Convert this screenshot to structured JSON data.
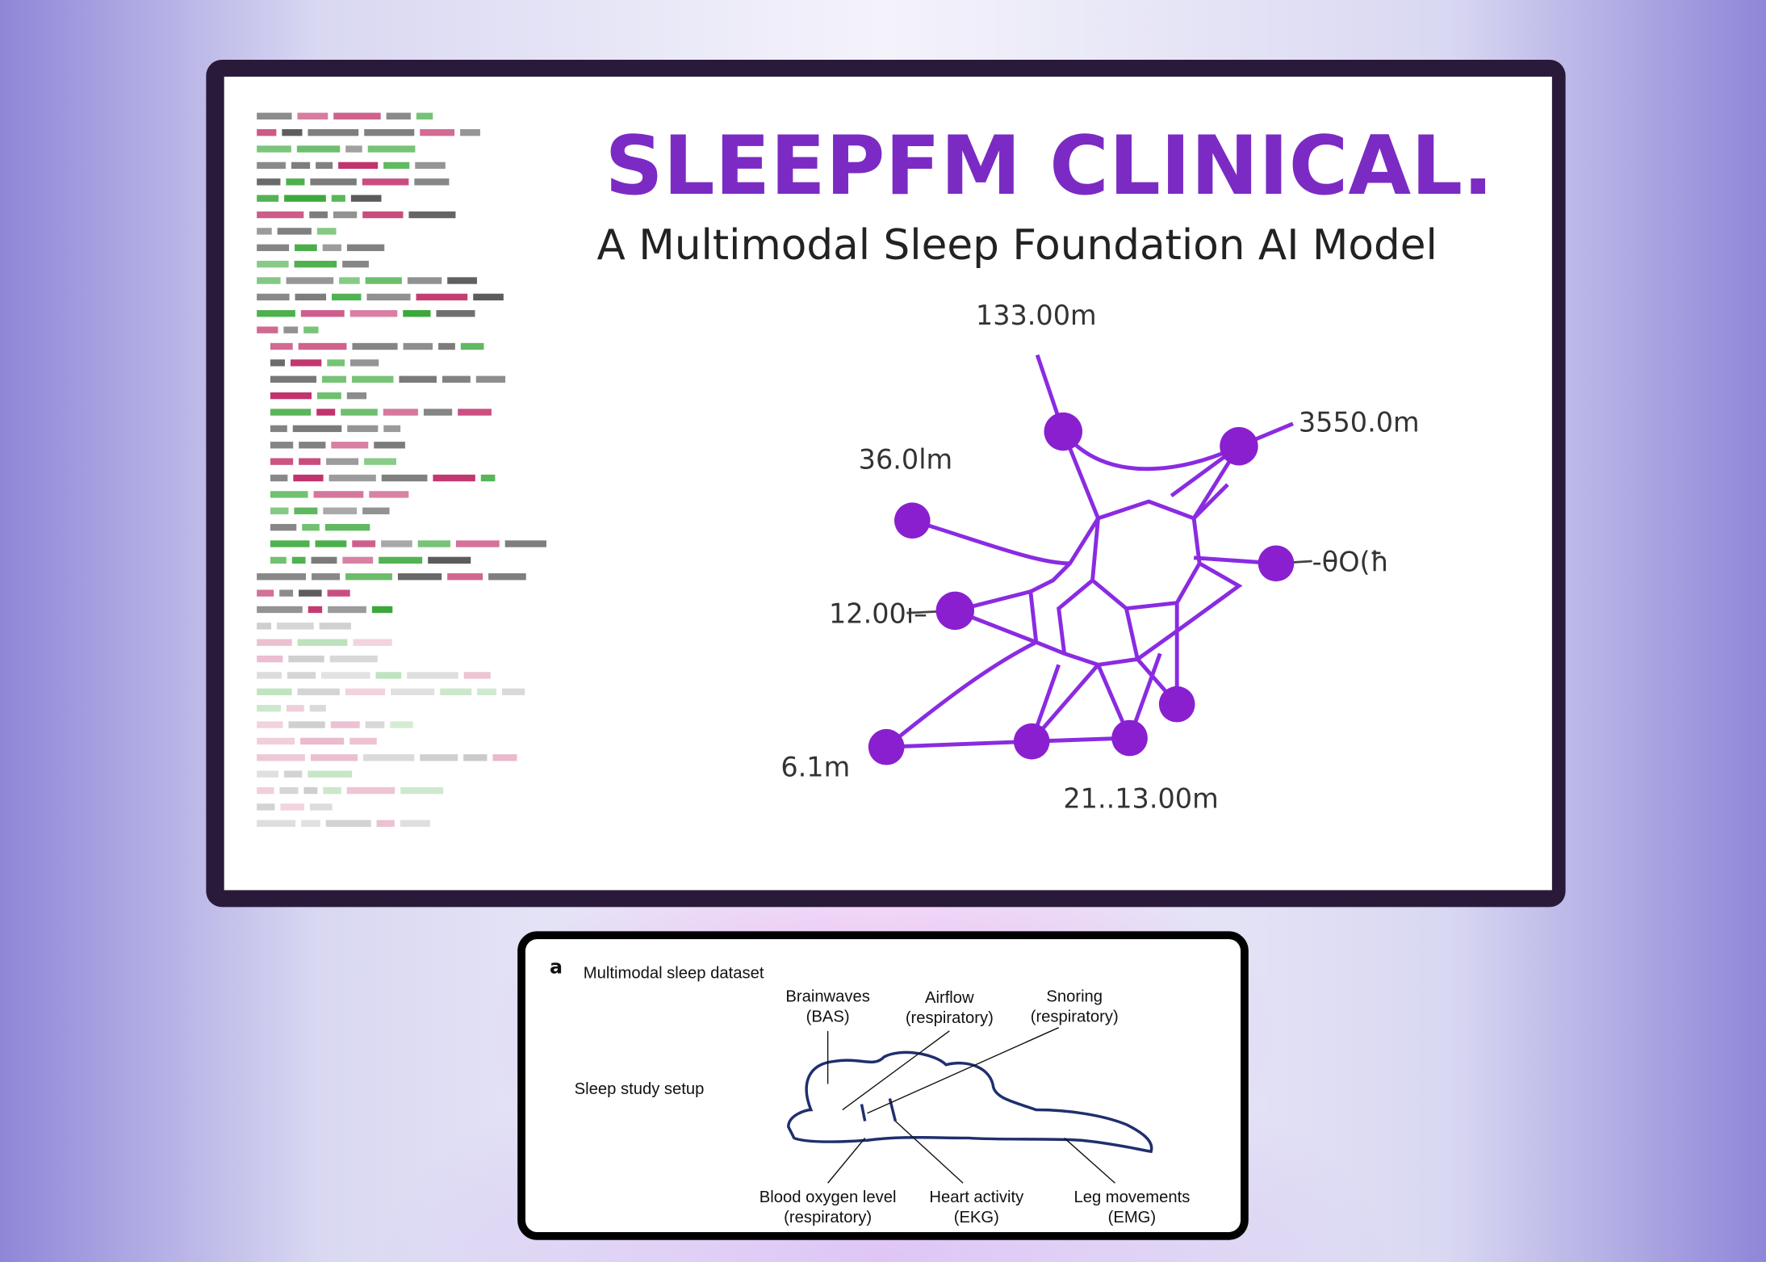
{
  "header": {
    "title": "SLEEPFM CLINICAL.",
    "subtitle": "A Multimodal Sleep Foundation AI Model"
  },
  "network": {
    "labels": [
      "133.00m",
      "3550.0m",
      "36.0lm",
      "-θΟ(ħ",
      "12.00ı–",
      "6.1m",
      "21..13.00m"
    ]
  },
  "panel": {
    "letter": "a",
    "title": "Multimodal sleep dataset",
    "setup_label": "Sleep study setup",
    "signals": [
      {
        "name": "Brainwaves",
        "detail": "(BAS)"
      },
      {
        "name": "Airflow",
        "detail": "(respiratory)"
      },
      {
        "name": "Snoring",
        "detail": "(respiratory)"
      },
      {
        "name": "Blood oxygen level",
        "detail": "(respiratory)"
      },
      {
        "name": "Heart activity",
        "detail": "(EKG)"
      },
      {
        "name": "Leg movements",
        "detail": "(EMG)"
      }
    ]
  }
}
